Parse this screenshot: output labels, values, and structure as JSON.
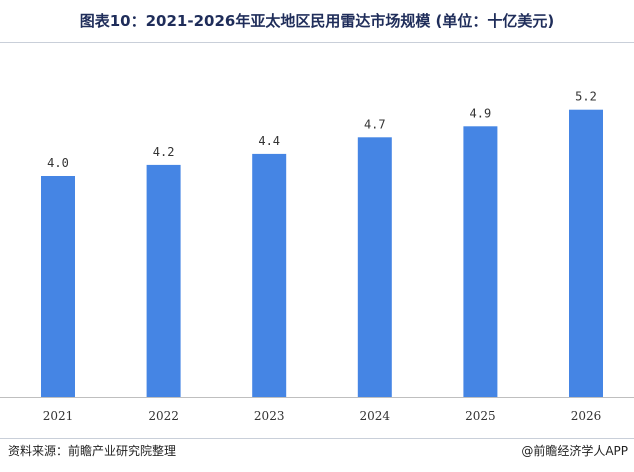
{
  "title": "图表10：2021-2026年亚太地区民用雷达市场规模 (单位：十亿美元)",
  "source": "资料来源：前瞻产业研究院整理",
  "brand": "@前瞻经济学人APP",
  "chart_data": {
    "type": "bar",
    "categories": [
      "2021",
      "2022",
      "2023",
      "2024",
      "2025",
      "2026"
    ],
    "values": [
      4.0,
      4.2,
      4.4,
      4.7,
      4.9,
      5.2
    ],
    "value_labels": [
      "4.0",
      "4.2",
      "4.4",
      "4.7",
      "4.9",
      "5.2"
    ],
    "bar_color": "#4585e4",
    "ylim": [
      0,
      5.6
    ],
    "grid": false,
    "legend": "none"
  }
}
